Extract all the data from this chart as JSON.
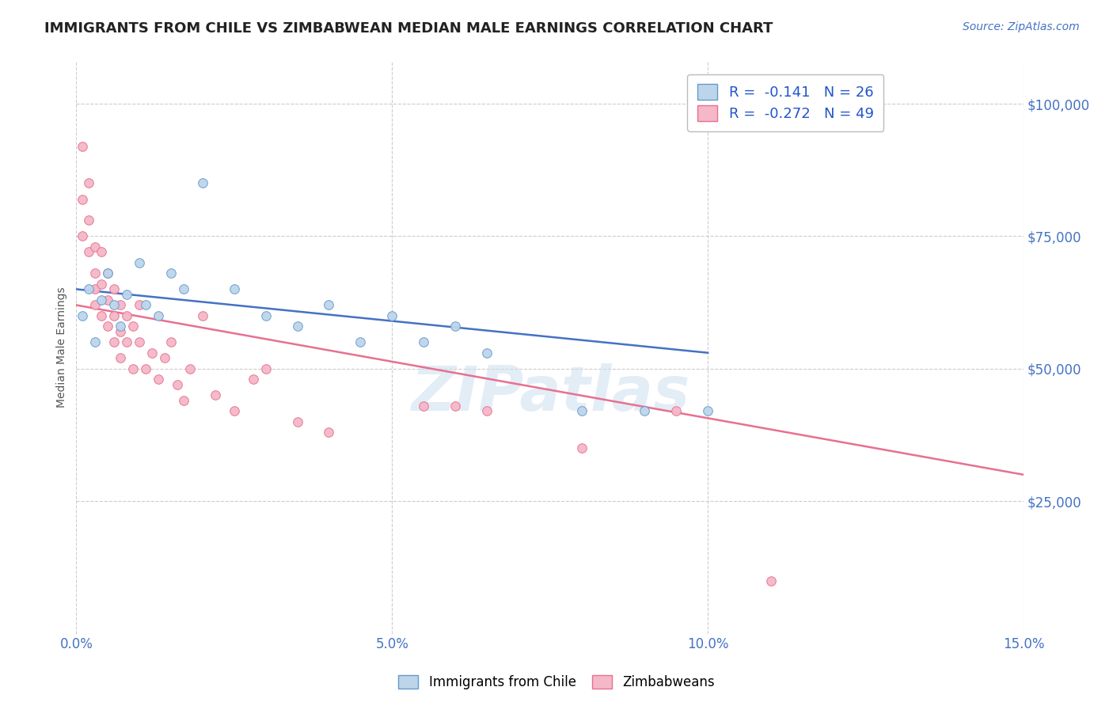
{
  "title": "IMMIGRANTS FROM CHILE VS ZIMBABWEAN MEDIAN MALE EARNINGS CORRELATION CHART",
  "source": "Source: ZipAtlas.com",
  "ylabel": "Median Male Earnings",
  "xlim": [
    0.0,
    0.15
  ],
  "ylim": [
    0,
    108000
  ],
  "yticks": [
    25000,
    50000,
    75000,
    100000
  ],
  "xticks": [
    0.0,
    0.05,
    0.1,
    0.15
  ],
  "xtick_labels": [
    "0.0%",
    "5.0%",
    "10.0%",
    "15.0%"
  ],
  "ytick_labels": [
    "$25,000",
    "$50,000",
    "$75,000",
    "$100,000"
  ],
  "watermark": "ZIPatlas",
  "series": [
    {
      "name": "Immigrants from Chile",
      "color": "#bdd5ea",
      "edge_color": "#6699cc",
      "R": -0.141,
      "N": 26,
      "x": [
        0.001,
        0.002,
        0.003,
        0.004,
        0.005,
        0.006,
        0.007,
        0.008,
        0.01,
        0.011,
        0.013,
        0.015,
        0.017,
        0.02,
        0.025,
        0.03,
        0.035,
        0.04,
        0.045,
        0.05,
        0.055,
        0.06,
        0.065,
        0.08,
        0.09,
        0.1
      ],
      "y": [
        60000,
        65000,
        55000,
        63000,
        68000,
        62000,
        58000,
        64000,
        70000,
        62000,
        60000,
        68000,
        65000,
        85000,
        65000,
        60000,
        58000,
        62000,
        55000,
        60000,
        55000,
        58000,
        53000,
        42000,
        42000,
        42000
      ],
      "trend_x": [
        0.0,
        0.1
      ],
      "trend_y": [
        65000,
        53000
      ],
      "trend_color": "#4472c4"
    },
    {
      "name": "Zimbabweans",
      "color": "#f4b8c8",
      "edge_color": "#e87090",
      "R": -0.272,
      "N": 49,
      "x": [
        0.001,
        0.001,
        0.001,
        0.002,
        0.002,
        0.002,
        0.003,
        0.003,
        0.003,
        0.003,
        0.004,
        0.004,
        0.004,
        0.005,
        0.005,
        0.005,
        0.006,
        0.006,
        0.006,
        0.007,
        0.007,
        0.007,
        0.008,
        0.008,
        0.009,
        0.009,
        0.01,
        0.01,
        0.011,
        0.012,
        0.013,
        0.014,
        0.015,
        0.016,
        0.017,
        0.018,
        0.02,
        0.022,
        0.025,
        0.028,
        0.03,
        0.035,
        0.04,
        0.055,
        0.06,
        0.065,
        0.08,
        0.095,
        0.11
      ],
      "y": [
        92000,
        82000,
        75000,
        78000,
        72000,
        85000,
        68000,
        73000,
        65000,
        62000,
        72000,
        66000,
        60000,
        68000,
        63000,
        58000,
        65000,
        60000,
        55000,
        62000,
        57000,
        52000,
        60000,
        55000,
        58000,
        50000,
        55000,
        62000,
        50000,
        53000,
        48000,
        52000,
        55000,
        47000,
        44000,
        50000,
        60000,
        45000,
        42000,
        48000,
        50000,
        40000,
        38000,
        43000,
        43000,
        42000,
        35000,
        42000,
        10000
      ],
      "trend_x": [
        0.0,
        0.15
      ],
      "trend_y": [
        62000,
        30000
      ],
      "trend_color": "#e87090"
    }
  ],
  "legend_color": "#2255cc",
  "title_color": "#222222",
  "axis_color": "#4472c4",
  "background_color": "#ffffff",
  "grid_color": "#cccccc",
  "title_fontsize": 13,
  "axis_label_fontsize": 10,
  "tick_fontsize": 12,
  "source_fontsize": 10
}
